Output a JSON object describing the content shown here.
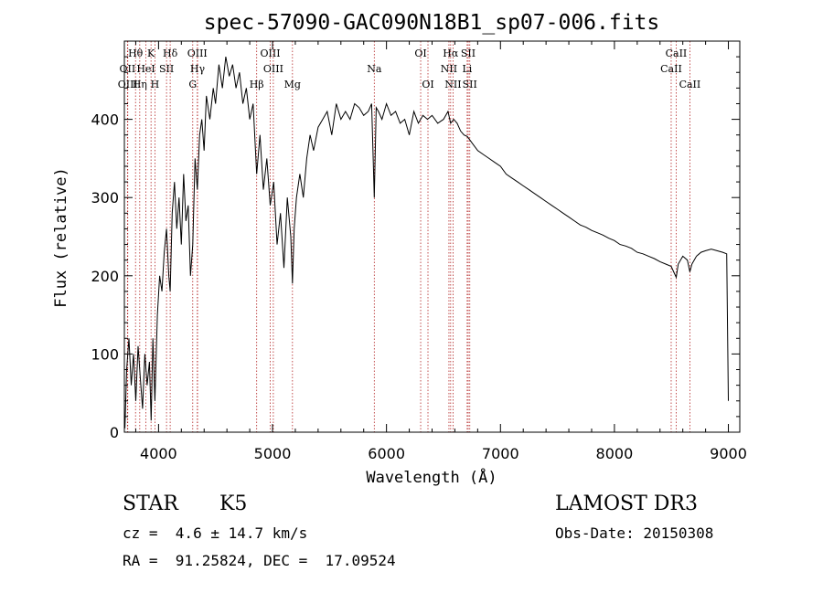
{
  "chart_data": {
    "type": "line",
    "title": "spec-57090-GAC090N18B1_sp07-006.fits",
    "xlabel": "Wavelength (Å)",
    "ylabel": "Flux (relative)",
    "xlim": [
      3700,
      9100
    ],
    "ylim": [
      0,
      500
    ],
    "xticks": [
      4000,
      5000,
      6000,
      7000,
      8000,
      9000
    ],
    "yticks": [
      0,
      100,
      200,
      300,
      400
    ],
    "grid": false,
    "legend": "none",
    "colors": {
      "spectrum": "#000000",
      "lines": "#b22222"
    },
    "spectral_lines": [
      {
        "label": "Hθ",
        "wavelength": 3798,
        "row": 1
      },
      {
        "label": "OII",
        "wavelength": 3727,
        "row": 2
      },
      {
        "label": "OIII",
        "wavelength": 3730,
        "row": 3
      },
      {
        "label": "Hη",
        "wavelength": 3835,
        "row": 3
      },
      {
        "label": "HeI",
        "wavelength": 3889,
        "row": 2
      },
      {
        "label": "K",
        "wavelength": 3934,
        "row": 1
      },
      {
        "label": "H",
        "wavelength": 3968,
        "row": 3
      },
      {
        "label": "SII",
        "wavelength": 4070,
        "row": 2
      },
      {
        "label": "Hδ",
        "wavelength": 4102,
        "row": 1
      },
      {
        "label": "G",
        "wavelength": 4300,
        "row": 3
      },
      {
        "label": "OIII",
        "wavelength": 4340,
        "row": 1
      },
      {
        "label": "Hγ",
        "wavelength": 4342,
        "row": 2
      },
      {
        "label": "Hβ",
        "wavelength": 4861,
        "row": 3
      },
      {
        "label": "OIII",
        "wavelength": 4980,
        "row": 1
      },
      {
        "label": "OIII",
        "wavelength": 5007,
        "row": 2
      },
      {
        "label": "Mg",
        "wavelength": 5175,
        "row": 3
      },
      {
        "label": "Na",
        "wavelength": 5893,
        "row": 2
      },
      {
        "label": "OI",
        "wavelength": 6300,
        "row": 1
      },
      {
        "label": "OI",
        "wavelength": 6364,
        "row": 3
      },
      {
        "label": "Hα",
        "wavelength": 6563,
        "row": 1
      },
      {
        "label": "NII",
        "wavelength": 6548,
        "row": 2
      },
      {
        "label": "NII",
        "wavelength": 6584,
        "row": 3
      },
      {
        "label": "SII",
        "wavelength": 6717,
        "row": 1
      },
      {
        "label": "Li",
        "wavelength": 6708,
        "row": 2
      },
      {
        "label": "SII",
        "wavelength": 6731,
        "row": 3
      },
      {
        "label": "CaII",
        "wavelength": 8542,
        "row": 1
      },
      {
        "label": "CaII",
        "wavelength": 8498,
        "row": 2
      },
      {
        "label": "CaII",
        "wavelength": 8662,
        "row": 3
      }
    ],
    "series": [
      {
        "x": [
          3705,
          3720,
          3740,
          3760,
          3780,
          3800,
          3820,
          3840,
          3860,
          3880,
          3900,
          3920,
          3935,
          3950,
          3968,
          3990,
          4010,
          4030,
          4050,
          4070,
          4090,
          4102,
          4120,
          4140,
          4160,
          4180,
          4200,
          4220,
          4240,
          4260,
          4280,
          4300,
          4320,
          4340,
          4360,
          4380,
          4400,
          4420,
          4450,
          4480,
          4500,
          4530,
          4560,
          4590,
          4620,
          4650,
          4680,
          4710,
          4740,
          4770,
          4800,
          4830,
          4861,
          4890,
          4920,
          4950,
          4980,
          5010,
          5040,
          5070,
          5100,
          5130,
          5160,
          5175,
          5190,
          5210,
          5240,
          5270,
          5300,
          5330,
          5360,
          5400,
          5440,
          5480,
          5520,
          5560,
          5600,
          5640,
          5680,
          5720,
          5760,
          5800,
          5840,
          5870,
          5893,
          5910,
          5930,
          5960,
          6000,
          6040,
          6080,
          6120,
          6160,
          6200,
          6240,
          6280,
          6320,
          6360,
          6400,
          6450,
          6500,
          6540,
          6563,
          6590,
          6620,
          6650,
          6680,
          6710,
          6750,
          6800,
          6850,
          6900,
          6950,
          7000,
          7050,
          7100,
          7150,
          7200,
          7250,
          7300,
          7350,
          7400,
          7450,
          7500,
          7550,
          7600,
          7650,
          7700,
          7750,
          7800,
          7850,
          7900,
          7950,
          8000,
          8050,
          8100,
          8150,
          8200,
          8250,
          8300,
          8350,
          8400,
          8450,
          8498,
          8520,
          8542,
          8560,
          8600,
          8640,
          8662,
          8680,
          8720,
          8760,
          8800,
          8850,
          8900,
          8950,
          8985,
          9000
        ],
        "y": [
          5,
          80,
          120,
          60,
          100,
          40,
          110,
          70,
          30,
          100,
          60,
          90,
          15,
          120,
          40,
          150,
          200,
          180,
          230,
          260,
          200,
          180,
          280,
          320,
          260,
          300,
          240,
          330,
          270,
          290,
          200,
          240,
          350,
          310,
          380,
          400,
          360,
          430,
          400,
          440,
          420,
          470,
          440,
          480,
          455,
          470,
          440,
          460,
          420,
          440,
          400,
          420,
          330,
          380,
          310,
          350,
          290,
          320,
          240,
          280,
          210,
          300,
          250,
          190,
          260,
          300,
          330,
          300,
          350,
          380,
          360,
          390,
          400,
          410,
          380,
          420,
          400,
          410,
          400,
          420,
          415,
          405,
          410,
          420,
          300,
          415,
          410,
          400,
          420,
          405,
          410,
          395,
          400,
          380,
          410,
          395,
          405,
          400,
          405,
          395,
          400,
          410,
          395,
          400,
          395,
          385,
          380,
          378,
          370,
          360,
          355,
          350,
          345,
          340,
          330,
          325,
          320,
          315,
          310,
          305,
          300,
          295,
          290,
          285,
          280,
          275,
          270,
          265,
          262,
          258,
          255,
          252,
          248,
          245,
          240,
          238,
          235,
          230,
          228,
          225,
          222,
          218,
          215,
          212,
          205,
          198,
          215,
          225,
          220,
          205,
          215,
          225,
          230,
          232,
          234,
          232,
          230,
          228,
          40
        ]
      }
    ]
  },
  "info": {
    "object_class": "STAR",
    "subclass": "K5",
    "survey": "LAMOST DR3",
    "redshift": "cz =  4.6 ± 14.7 km/s",
    "obs_date": "Obs-Date: 20150308",
    "coordinates": "RA =  91.25824, DEC =  17.09524"
  }
}
